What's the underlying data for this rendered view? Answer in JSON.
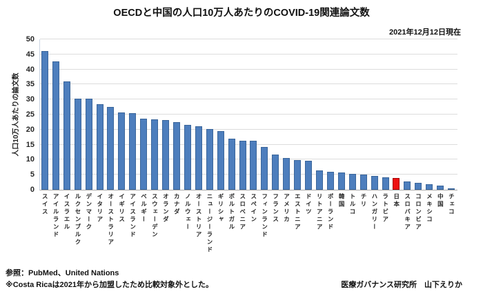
{
  "header": {
    "title": "OECDと中国の人口10万人あたりのCOVID-19関連論文数",
    "date_note": "2021年12月12日現在"
  },
  "chart_data": {
    "type": "bar",
    "title": "OECDと中国の人口10万人あたりのCOVID-19関連論文数",
    "ylabel": "人口10万人あたりの論文数",
    "xlabel": "",
    "ylim": [
      0,
      50
    ],
    "ytick_step": 5,
    "grid": true,
    "legend": "none",
    "bar_color": "#4d7ebd",
    "bar_border_color": "#3a659a",
    "highlight_color": "#ee1111",
    "highlight_border_color": "#a50000",
    "highlight_category": "日本",
    "categories": [
      "スイス",
      "アイルランド",
      "イスラエル",
      "ルクセンブルク",
      "デンマーク",
      "イタリア",
      "オーストラリア",
      "イギリス",
      "アイスランド",
      "ベルギー",
      "スウェーデン",
      "オランダ",
      "カナダ",
      "ノルウェー",
      "オーストリア",
      "ニュージーランド",
      "ギリシャ",
      "ポルトガル",
      "スロベニア",
      "スペイン",
      "フィンランド",
      "フランス",
      "アメリカ",
      "エストニア",
      "ドイツ",
      "リトアニア",
      "ポーランド",
      "韓国",
      "トルコ",
      "チリ",
      "ハンガリー",
      "ラトビア",
      "日本",
      "スロバキア",
      "コロンビア",
      "メキシコ",
      "中国",
      "チェコ"
    ],
    "values": [
      46.0,
      42.7,
      35.9,
      30.3,
      30.3,
      28.4,
      27.6,
      25.7,
      25.4,
      23.6,
      23.3,
      23.2,
      22.5,
      21.6,
      21.2,
      20.2,
      19.4,
      16.9,
      16.4,
      16.2,
      14.3,
      11.7,
      10.5,
      9.8,
      9.7,
      6.5,
      5.9,
      5.7,
      5.2,
      5.0,
      4.6,
      4.2,
      3.8,
      2.7,
      2.2,
      1.8,
      1.3,
      0.4
    ]
  },
  "footer": {
    "source": "参照：PubMed、United Nations",
    "note": "※Costa Ricaは2021年から加盟したため比較対象外とした。",
    "credit": "医療ガバナンス研究所　山下えりか"
  }
}
